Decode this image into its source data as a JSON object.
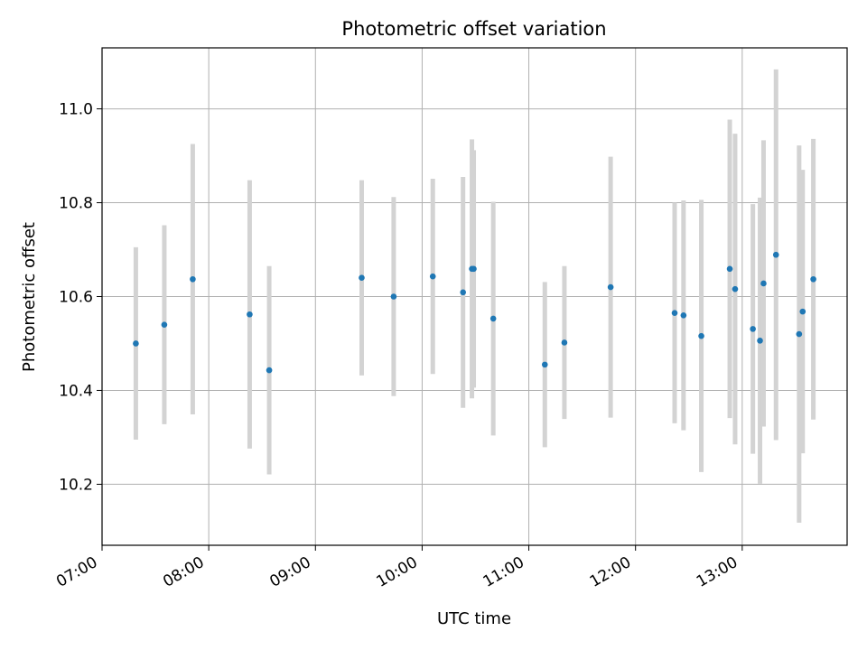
{
  "chart_data": {
    "type": "scatter",
    "title": "Photometric offset variation",
    "xlabel": "UTC time",
    "ylabel": "Photometric offset",
    "x_tick_labels": [
      "07:00",
      "08:00",
      "09:00",
      "10:00",
      "11:00",
      "12:00",
      "13:00"
    ],
    "x_ticks": [
      "07:00",
      "08:00",
      "09:00",
      "10:00",
      "11:00",
      "12:00",
      "13:00"
    ],
    "xlim": [
      "07:00",
      "13:59"
    ],
    "y_ticks": [
      10.2,
      10.4,
      10.6,
      10.8,
      11.0
    ],
    "y_tick_labels": [
      "10.2",
      "10.4",
      "10.6",
      "10.8",
      "11.0"
    ],
    "ylim": [
      10.07,
      11.13
    ],
    "grid": true,
    "series": [
      {
        "marker_color": "#1f77b4",
        "errorbar_color": "#d3d3d3",
        "points": [
          {
            "x": "07:19",
            "y": 10.5,
            "err": 0.205
          },
          {
            "x": "07:35",
            "y": 10.54,
            "err": 0.212
          },
          {
            "x": "07:51",
            "y": 10.637,
            "err": 0.288
          },
          {
            "x": "08:23",
            "y": 10.562,
            "err": 0.286
          },
          {
            "x": "08:34",
            "y": 10.443,
            "err": 0.222
          },
          {
            "x": "09:26",
            "y": 10.64,
            "err": 0.208
          },
          {
            "x": "09:44",
            "y": 10.6,
            "err": 0.212
          },
          {
            "x": "10:06",
            "y": 10.643,
            "err": 0.208
          },
          {
            "x": "10:23",
            "y": 10.609,
            "err": 0.246
          },
          {
            "x": "10:28",
            "y": 10.659,
            "err": 0.276
          },
          {
            "x": "10:29",
            "y": 10.659,
            "err": 0.253
          },
          {
            "x": "10:40",
            "y": 10.553,
            "err": 0.249
          },
          {
            "x": "11:09",
            "y": 10.455,
            "err": 0.176
          },
          {
            "x": "11:20",
            "y": 10.502,
            "err": 0.163
          },
          {
            "x": "11:46",
            "y": 10.62,
            "err": 0.278
          },
          {
            "x": "12:22",
            "y": 10.565,
            "err": 0.235
          },
          {
            "x": "12:27",
            "y": 10.56,
            "err": 0.245
          },
          {
            "x": "12:37",
            "y": 10.516,
            "err": 0.29
          },
          {
            "x": "12:53",
            "y": 10.659,
            "err": 0.318
          },
          {
            "x": "12:56",
            "y": 10.616,
            "err": 0.331
          },
          {
            "x": "13:06",
            "y": 10.531,
            "err": 0.266
          },
          {
            "x": "13:10",
            "y": 10.506,
            "err": 0.305
          },
          {
            "x": "13:12",
            "y": 10.628,
            "err": 0.305
          },
          {
            "x": "13:19",
            "y": 10.689,
            "err": 0.395
          },
          {
            "x": "13:32",
            "y": 10.52,
            "err": 0.402
          },
          {
            "x": "13:34",
            "y": 10.568,
            "err": 0.302
          },
          {
            "x": "13:40",
            "y": 10.637,
            "err": 0.299
          }
        ]
      }
    ]
  }
}
